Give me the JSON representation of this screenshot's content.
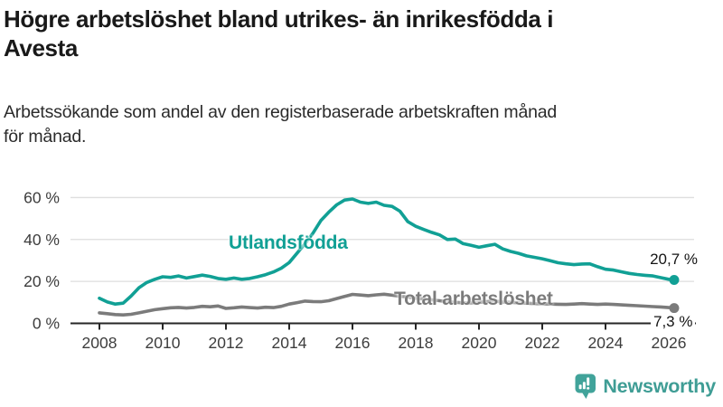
{
  "header": {
    "title_line1": "Högre arbetslöshet bland utrikes- än inrikesfödda i",
    "title_line2": "Avesta",
    "subtitle_line1": "Arbetssökande som andel av den registerbaserade arbetskraften månad",
    "subtitle_line2": "för månad."
  },
  "chart_data": {
    "type": "line",
    "title": "Högre arbetslöshet bland utrikes- än inrikesfödda i Avesta",
    "subtitle": "Arbetssökande som andel av den registerbaserade arbetskraften månad för månad.",
    "xlabel": "",
    "ylabel": "",
    "xlim": [
      2007.9,
      2026.6
    ],
    "ylim": [
      0,
      65
    ],
    "grid": "horizontal",
    "legend_position": "inline-labels",
    "x_ticks": [
      2008,
      2010,
      2012,
      2014,
      2016,
      2018,
      2020,
      2022,
      2024,
      2026
    ],
    "y_ticks": [
      0,
      20,
      40,
      60
    ],
    "y_tick_suffix": " %",
    "x": [
      2008.0,
      2008.25,
      2008.5,
      2008.75,
      2009.0,
      2009.25,
      2009.5,
      2009.75,
      2010.0,
      2010.25,
      2010.5,
      2010.75,
      2011.0,
      2011.25,
      2011.5,
      2011.75,
      2012.0,
      2012.25,
      2012.5,
      2012.75,
      2013.0,
      2013.25,
      2013.5,
      2013.75,
      2014.0,
      2014.25,
      2014.5,
      2014.75,
      2015.0,
      2015.25,
      2015.5,
      2015.75,
      2016.0,
      2016.25,
      2016.5,
      2016.75,
      2017.0,
      2017.25,
      2017.5,
      2017.75,
      2018.0,
      2018.25,
      2018.5,
      2018.75,
      2019.0,
      2019.25,
      2019.5,
      2019.75,
      2020.0,
      2020.25,
      2020.5,
      2020.75,
      2021.0,
      2021.25,
      2021.5,
      2021.75,
      2022.0,
      2022.25,
      2022.5,
      2022.75,
      2023.0,
      2023.25,
      2023.5,
      2023.75,
      2024.0,
      2024.25,
      2024.5,
      2024.75,
      2025.0,
      2025.25,
      2025.5,
      2025.75,
      2026.0,
      2026.17
    ],
    "series": [
      {
        "name": "Utlandsfödda",
        "color": "#11A095",
        "end_value": 20.7,
        "end_label": "20,7 %",
        "values": [
          12.0,
          10.2,
          9.2,
          9.6,
          13.0,
          17.0,
          19.5,
          21.0,
          22.2,
          21.9,
          22.6,
          21.6,
          22.3,
          23.0,
          22.4,
          21.4,
          21.0,
          21.6,
          21.0,
          21.4,
          22.2,
          23.2,
          24.5,
          26.3,
          29.0,
          33.5,
          38.0,
          43.0,
          49.0,
          53.0,
          56.5,
          58.8,
          59.3,
          57.8,
          57.2,
          57.8,
          56.3,
          55.8,
          53.5,
          48.5,
          46.3,
          44.8,
          43.4,
          42.2,
          40.0,
          40.2,
          38.0,
          37.2,
          36.3,
          37.0,
          37.7,
          35.5,
          34.3,
          33.4,
          32.2,
          31.5,
          30.8,
          29.9,
          28.9,
          28.4,
          28.0,
          28.3,
          28.4,
          27.0,
          25.8,
          25.4,
          24.6,
          23.8,
          23.3,
          22.9,
          22.6,
          21.8,
          21.0,
          20.7
        ]
      },
      {
        "name": "Total arbetslöshet",
        "color": "#7b7b7b",
        "end_value": 7.3,
        "end_label": "7,3 %",
        "values": [
          5.0,
          4.6,
          4.2,
          4.0,
          4.3,
          5.0,
          5.8,
          6.5,
          7.0,
          7.4,
          7.6,
          7.3,
          7.6,
          8.1,
          7.9,
          8.3,
          7.1,
          7.4,
          7.8,
          7.5,
          7.3,
          7.7,
          7.5,
          8.1,
          9.2,
          9.9,
          10.6,
          10.4,
          10.3,
          10.8,
          11.8,
          12.8,
          13.8,
          13.5,
          13.2,
          13.6,
          13.9,
          13.4,
          13.0,
          12.5,
          12.0,
          11.6,
          11.2,
          10.8,
          10.3,
          10.0,
          9.8,
          9.7,
          10.0,
          10.4,
          10.6,
          10.2,
          10.0,
          9.8,
          9.6,
          9.4,
          9.3,
          9.2,
          9.1,
          9.0,
          9.2,
          9.4,
          9.2,
          9.0,
          9.2,
          9.0,
          8.8,
          8.6,
          8.4,
          8.2,
          8.0,
          7.8,
          7.5,
          7.3
        ]
      }
    ]
  },
  "annotations": {
    "utlands_series_label": "Utlandsfödda",
    "total_series_label": "Total arbetslöshet",
    "utlands_end_label": "20,7 %",
    "total_end_label": "7,3 %"
  },
  "branding": {
    "logo_text": "Newsworthy",
    "logo_color": "#3F9D95",
    "icon_color": "#41A39A"
  },
  "colors": {
    "background": "#ffffff",
    "gridline": "#dedede",
    "axis": "#262626",
    "tick_label": "#3d3d3d",
    "title_text": "#191919",
    "subtitle_text": "#2b2b2b",
    "series_teal": "#11A095",
    "series_gray": "#7b7b7b"
  }
}
